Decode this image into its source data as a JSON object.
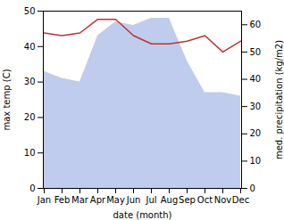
{
  "chart_data": {
    "type": "combo",
    "categories": [
      "Jan",
      "Feb",
      "Mar",
      "Apr",
      "May",
      "Jun",
      "Jul",
      "Aug",
      "Sep",
      "Oct",
      "Nov",
      "Dec"
    ],
    "series": [
      {
        "type": "area",
        "axis": "y",
        "color": "#c0ccee",
        "values": [
          33,
          31,
          30,
          43,
          47,
          46,
          48,
          48,
          36,
          27,
          27,
          26
        ]
      },
      {
        "type": "line",
        "axis": "y2",
        "color": "#bb3333",
        "values": [
          57,
          56,
          57,
          62,
          62,
          56,
          53,
          53,
          54,
          56,
          50,
          54
        ]
      }
    ],
    "xlabel": "date (month)",
    "ylabel": "max temp (C)",
    "y2label": "med. precipitation (kg/m2)",
    "ylim": [
      0,
      50
    ],
    "yticks": [
      0,
      10,
      20,
      30,
      40,
      50
    ],
    "y2lim": [
      0,
      65
    ],
    "y2ticks": [
      0,
      10,
      20,
      30,
      40,
      50,
      60
    ],
    "grid": false
  }
}
